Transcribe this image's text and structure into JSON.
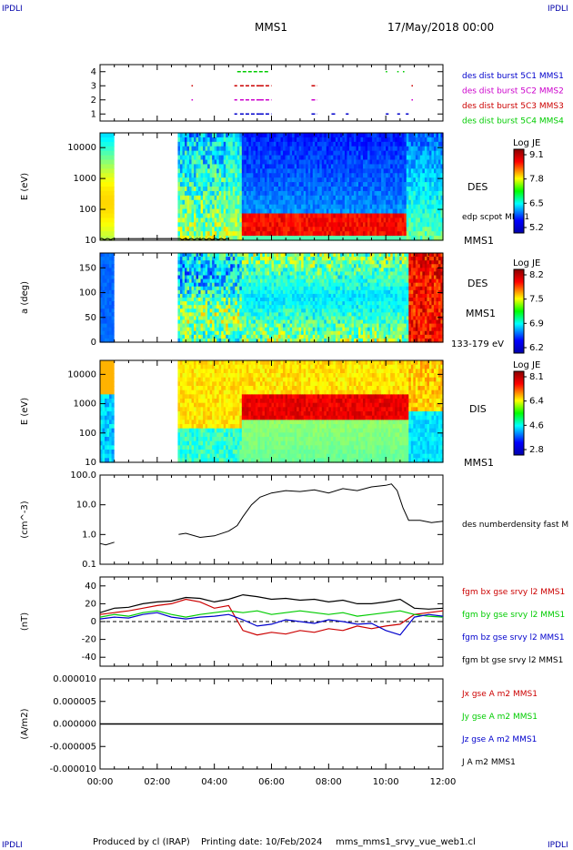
{
  "corner_label": "IPDLI",
  "header": {
    "mission": "MMS1",
    "datetime": "17/May/2018 00:00"
  },
  "footer": {
    "produced_by": "Produced by cl (IRAP)",
    "printing_date": "Printing date: 10/Feb/2024",
    "filename": "mms_mms1_srvy_vue_web1.cl"
  },
  "colors": {
    "blue": "#0000cc",
    "magenta": "#cc00cc",
    "red": "#cc0000",
    "green": "#00cc00",
    "black": "#000000"
  },
  "time_axis": {
    "ticks": [
      "00:00",
      "02:00",
      "04:00",
      "06:00",
      "08:00",
      "10:00",
      "12:00"
    ],
    "range_hours": [
      0,
      12
    ]
  },
  "chart_data": [
    {
      "type": "scatter",
      "panel": "burst",
      "ylim": [
        0.5,
        4.5
      ],
      "yticks": [
        "1",
        "2",
        "3",
        "4"
      ],
      "legend": [
        {
          "text": "des dist burst 5C1 MMS1",
          "color": "#0000cc"
        },
        {
          "text": "des dist burst 5C2 MMS2",
          "color": "#cc00cc"
        },
        {
          "text": "des dist burst 5C3 MMS3",
          "color": "#cc0000"
        },
        {
          "text": "des dist burst 5C4 MMS4",
          "color": "#00cc00"
        }
      ],
      "series": [
        {
          "level": 1,
          "color": "#0000cc",
          "intervals": [
            [
              4.7,
              4.8
            ],
            [
              4.9,
              5.6
            ],
            [
              5.6,
              6.0
            ],
            [
              7.4,
              7.6
            ],
            [
              8.1,
              8.25
            ],
            [
              8.6,
              8.7
            ],
            [
              10.0,
              10.1
            ],
            [
              10.4,
              10.5
            ],
            [
              10.7,
              10.8
            ]
          ]
        },
        {
          "level": 2,
          "color": "#cc00cc",
          "intervals": [
            [
              3.2,
              3.25
            ],
            [
              4.7,
              4.8
            ],
            [
              4.9,
              5.6
            ],
            [
              5.6,
              6.0
            ],
            [
              7.4,
              7.6
            ],
            [
              10.9,
              10.95
            ]
          ]
        },
        {
          "level": 3,
          "color": "#cc0000",
          "intervals": [
            [
              3.2,
              3.25
            ],
            [
              4.7,
              4.8
            ],
            [
              4.9,
              5.6
            ],
            [
              5.6,
              6.0
            ],
            [
              7.4,
              7.6
            ],
            [
              10.9,
              10.95
            ]
          ]
        },
        {
          "level": 4,
          "color": "#00cc00",
          "intervals": [
            [
              4.8,
              5.9
            ],
            [
              10.0,
              10.05
            ],
            [
              10.4,
              10.45
            ],
            [
              10.6,
              10.65
            ]
          ]
        }
      ]
    },
    {
      "type": "heatmap",
      "panel": "des_energy",
      "ylabel": "E (eV)",
      "yscale": "log",
      "ylim": [
        10,
        30000
      ],
      "yticks": [
        "10",
        "100",
        "1000",
        "10000"
      ],
      "right_labels": [
        "DES",
        "MMS1"
      ],
      "overlay_label": "edp scpot MMS1",
      "colorbar": {
        "title": "Log JE",
        "ticks": [
          "9.1",
          "7.8",
          "6.5",
          "5.2"
        ]
      },
      "data_gap_hours": [
        0.5,
        2.75
      ]
    },
    {
      "type": "heatmap",
      "panel": "des_pitch",
      "ylabel": "a (deg)",
      "ylim": [
        0,
        180
      ],
      "yticks": [
        "0",
        "50",
        "100",
        "150"
      ],
      "right_labels": [
        "DES",
        "MMS1",
        "133-179 eV"
      ],
      "colorbar": {
        "title": "Log JE",
        "ticks": [
          "8.2",
          "7.5",
          "6.9",
          "6.2"
        ]
      },
      "data_gap_hours": [
        0.5,
        2.75
      ]
    },
    {
      "type": "heatmap",
      "panel": "dis_energy",
      "ylabel": "E (eV)",
      "yscale": "log",
      "ylim": [
        10,
        30000
      ],
      "yticks": [
        "10",
        "100",
        "1000",
        "10000"
      ],
      "right_labels": [
        "DIS",
        "MMS1"
      ],
      "colorbar": {
        "title": "Log JE",
        "ticks": [
          "8.1",
          "6.4",
          "4.6",
          "2.8"
        ]
      },
      "data_gap_hours": [
        0.5,
        2.75
      ]
    },
    {
      "type": "line",
      "panel": "density",
      "ylabel": "(cm^-3)",
      "yscale": "log",
      "ylim": [
        0.1,
        100
      ],
      "yticks": [
        "0.1",
        "1.0",
        "10.0",
        "100.0"
      ],
      "legend": [
        {
          "text": "des numberdensity fast M",
          "color": "#000000"
        }
      ],
      "x": [
        0.0,
        0.2,
        0.5,
        2.75,
        3.0,
        3.5,
        4.0,
        4.5,
        4.8,
        5.0,
        5.3,
        5.6,
        6.0,
        6.5,
        7.0,
        7.5,
        8.0,
        8.5,
        9.0,
        9.5,
        10.0,
        10.2,
        10.4,
        10.6,
        10.8,
        11.2,
        11.6,
        12.0
      ],
      "values": [
        0.5,
        0.45,
        0.55,
        1.0,
        1.1,
        0.8,
        0.9,
        1.3,
        2.0,
        4.0,
        10.0,
        18.0,
        25.0,
        30.0,
        28.0,
        32.0,
        25.0,
        35.0,
        30.0,
        40.0,
        45.0,
        50.0,
        30.0,
        8.0,
        3.0,
        3.0,
        2.5,
        2.8
      ]
    },
    {
      "type": "line",
      "panel": "magnetic_field",
      "ylabel": "(nT)",
      "ylim": [
        -50,
        50
      ],
      "yticks": [
        "-40",
        "-20",
        "0",
        "20",
        "40"
      ],
      "legend": [
        {
          "text": "fgm bx gse srvy l2 MMS1",
          "color": "#cc0000"
        },
        {
          "text": "fgm by gse srvy l2 MMS1",
          "color": "#00cc00"
        },
        {
          "text": "fgm bz gse srvy l2 MMS1",
          "color": "#0000cc"
        },
        {
          "text": "fgm bt gse srvy l2 MMS1",
          "color": "#000000"
        }
      ],
      "x": [
        0,
        0.5,
        1,
        1.5,
        2,
        2.5,
        3,
        3.5,
        4,
        4.5,
        5,
        5.5,
        6,
        6.5,
        7,
        7.5,
        8,
        8.5,
        9,
        9.5,
        10,
        10.5,
        11,
        11.5,
        12
      ],
      "series": [
        {
          "name": "bx",
          "color": "#cc0000",
          "values": [
            8,
            10,
            12,
            15,
            18,
            20,
            25,
            22,
            15,
            18,
            -10,
            -15,
            -12,
            -14,
            -10,
            -12,
            -8,
            -10,
            -5,
            -8,
            -5,
            -3,
            8,
            10,
            12
          ]
        },
        {
          "name": "by",
          "color": "#00cc00",
          "values": [
            5,
            8,
            6,
            10,
            12,
            8,
            5,
            8,
            10,
            12,
            10,
            12,
            8,
            10,
            12,
            10,
            8,
            10,
            6,
            8,
            10,
            12,
            8,
            6,
            5
          ]
        },
        {
          "name": "bz",
          "color": "#0000cc",
          "values": [
            3,
            5,
            4,
            8,
            10,
            5,
            3,
            5,
            6,
            8,
            2,
            -5,
            -3,
            2,
            0,
            -2,
            2,
            0,
            -3,
            -2,
            -10,
            -15,
            5,
            8,
            6
          ]
        },
        {
          "name": "bt",
          "color": "#000000",
          "values": [
            10,
            15,
            16,
            20,
            22,
            23,
            27,
            26,
            22,
            25,
            30,
            28,
            25,
            26,
            24,
            25,
            22,
            24,
            20,
            20,
            22,
            25,
            15,
            14,
            15
          ]
        }
      ]
    },
    {
      "type": "line",
      "panel": "current",
      "ylabel": "(A/m2)",
      "ylim": [
        -1e-05,
        1e-05
      ],
      "yticks": [
        "-0.000010",
        "-0.000005",
        "0.000000",
        "0.000005",
        "0.000010"
      ],
      "legend": [
        {
          "text": "Jx gse A m2 MMS1",
          "color": "#cc0000"
        },
        {
          "text": "Jy gse A m2 MMS1",
          "color": "#00cc00"
        },
        {
          "text": "Jz gse A m2 MMS1",
          "color": "#0000cc"
        },
        {
          "text": "J A m2 MMS1",
          "color": "#000000"
        }
      ],
      "x": [
        0,
        12
      ],
      "values": [
        0,
        0
      ]
    }
  ]
}
